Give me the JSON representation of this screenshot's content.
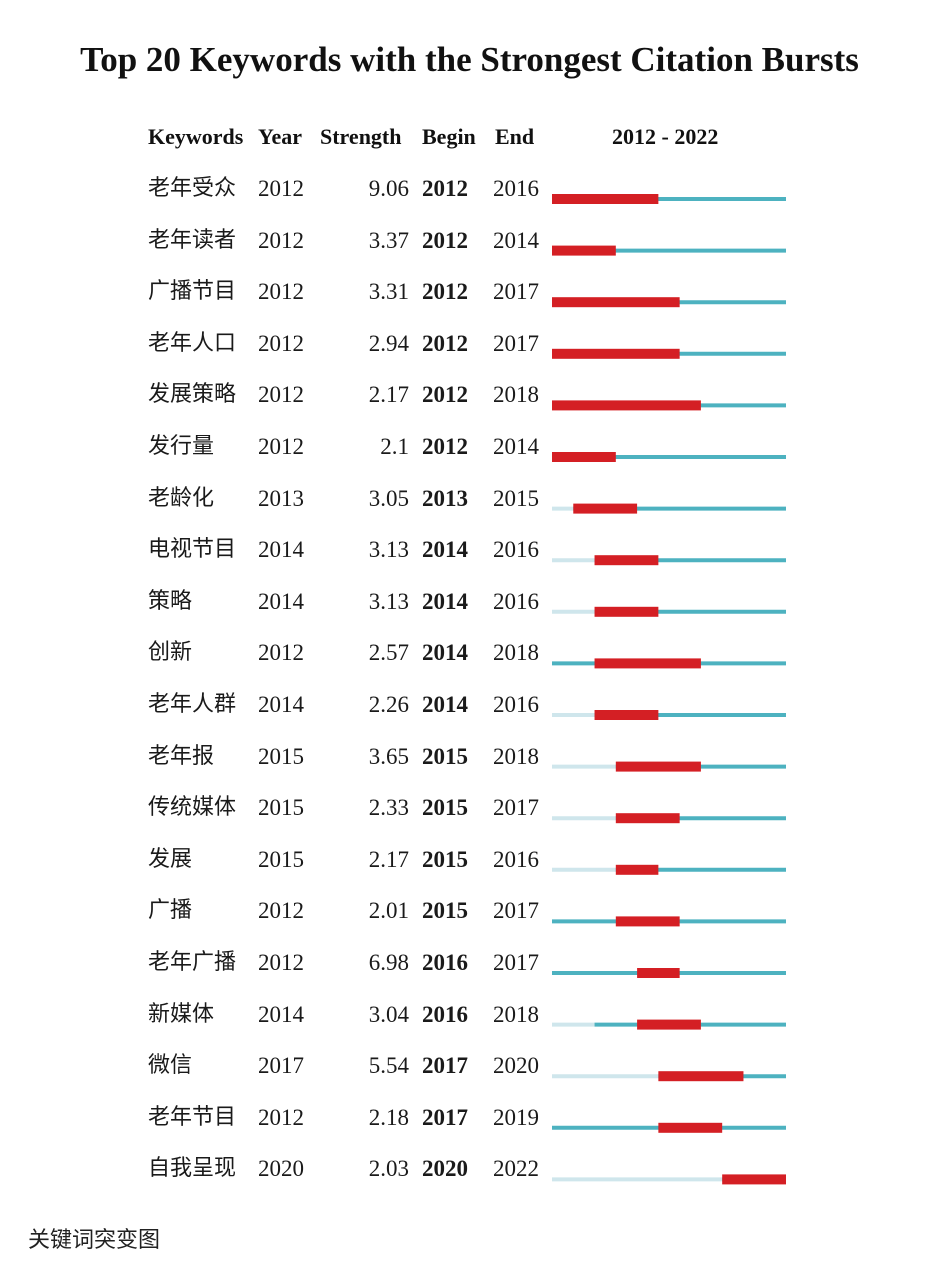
{
  "chart_data": {
    "type": "table",
    "title": "Top 20 Keywords with the Strongest Citation Bursts",
    "columns": [
      "Keywords",
      "Year",
      "Strength",
      "Begin",
      "End",
      "2012 - 2022"
    ],
    "range_start": 2012,
    "range_end": 2022,
    "colors": {
      "burst": "#d41f24",
      "active": "#4db2c0",
      "inactive": "#cfe6ec"
    },
    "rows": [
      {
        "keyword": "老年受众",
        "year": "2012",
        "strength": "9.06",
        "begin": "2012",
        "end": "2016"
      },
      {
        "keyword": "老年读者",
        "year": "2012",
        "strength": "3.37",
        "begin": "2012",
        "end": "2014"
      },
      {
        "keyword": "广播节目",
        "year": "2012",
        "strength": "3.31",
        "begin": "2012",
        "end": "2017"
      },
      {
        "keyword": "老年人口",
        "year": "2012",
        "strength": "2.94",
        "begin": "2012",
        "end": "2017"
      },
      {
        "keyword": "发展策略",
        "year": "2012",
        "strength": "2.17",
        "begin": "2012",
        "end": "2018"
      },
      {
        "keyword": "发行量",
        "year": "2012",
        "strength": "2.1",
        "begin": "2012",
        "end": "2014"
      },
      {
        "keyword": "老龄化",
        "year": "2013",
        "strength": "3.05",
        "begin": "2013",
        "end": "2015"
      },
      {
        "keyword": "电视节目",
        "year": "2014",
        "strength": "3.13",
        "begin": "2014",
        "end": "2016"
      },
      {
        "keyword": "策略",
        "year": "2014",
        "strength": "3.13",
        "begin": "2014",
        "end": "2016"
      },
      {
        "keyword": "创新",
        "year": "2012",
        "strength": "2.57",
        "begin": "2014",
        "end": "2018"
      },
      {
        "keyword": "老年人群",
        "year": "2014",
        "strength": "2.26",
        "begin": "2014",
        "end": "2016"
      },
      {
        "keyword": "老年报",
        "year": "2015",
        "strength": "3.65",
        "begin": "2015",
        "end": "2018"
      },
      {
        "keyword": "传统媒体",
        "year": "2015",
        "strength": "2.33",
        "begin": "2015",
        "end": "2017"
      },
      {
        "keyword": "发展",
        "year": "2015",
        "strength": "2.17",
        "begin": "2015",
        "end": "2016"
      },
      {
        "keyword": "广播",
        "year": "2012",
        "strength": "2.01",
        "begin": "2015",
        "end": "2017"
      },
      {
        "keyword": "老年广播",
        "year": "2012",
        "strength": "6.98",
        "begin": "2016",
        "end": "2017"
      },
      {
        "keyword": "新媒体",
        "year": "2014",
        "strength": "3.04",
        "begin": "2016",
        "end": "2018"
      },
      {
        "keyword": "微信",
        "year": "2017",
        "strength": "5.54",
        "begin": "2017",
        "end": "2020"
      },
      {
        "keyword": "老年节目",
        "year": "2012",
        "strength": "2.18",
        "begin": "2017",
        "end": "2019"
      },
      {
        "keyword": "自我呈现",
        "year": "2020",
        "strength": "2.03",
        "begin": "2020",
        "end": "2022"
      }
    ]
  },
  "caption": "关键词突变图"
}
